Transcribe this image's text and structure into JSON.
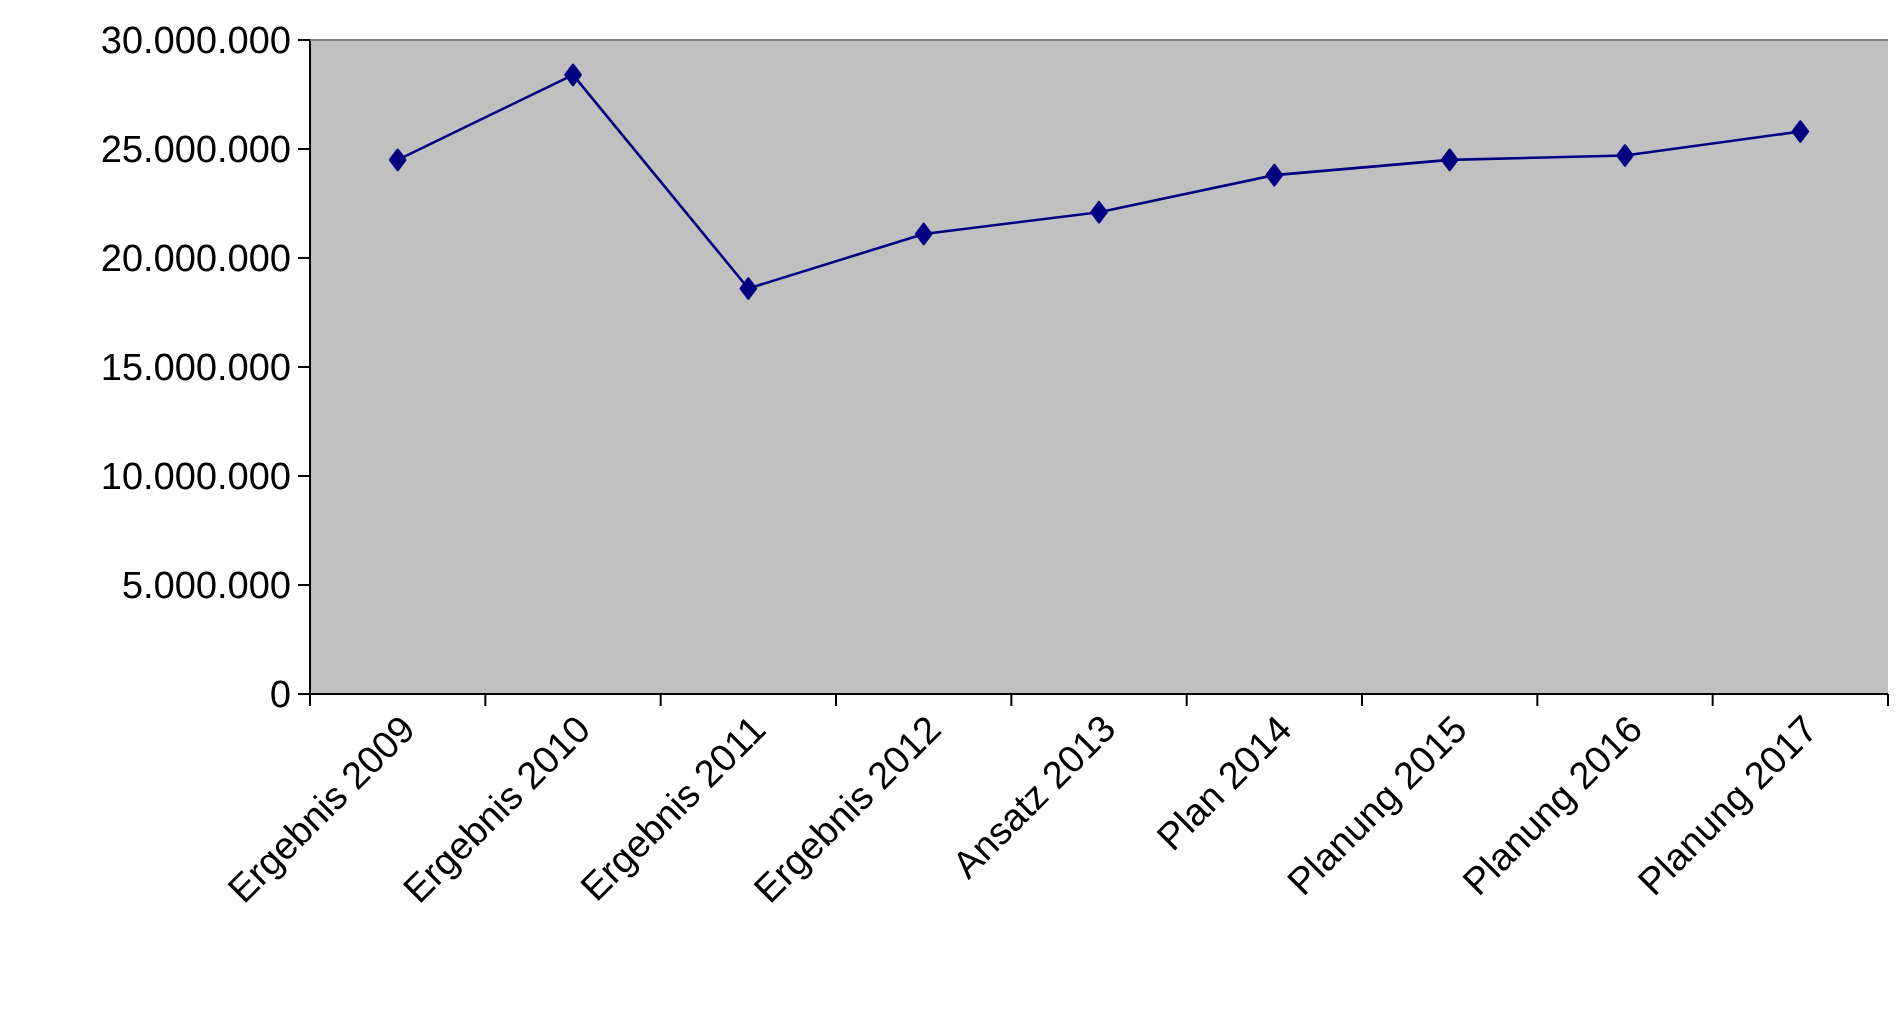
{
  "chart_data": {
    "type": "line",
    "categories": [
      "Ergebnis 2009",
      "Ergebnis 2010",
      "Ergebnis 2011",
      "Ergebnis 2012",
      "Ansatz 2013",
      "Plan 2014",
      "Planung 2015",
      "Planung 2016",
      "Planung 2017"
    ],
    "series": [
      {
        "color": "#000080",
        "values": [
          24500000,
          28400000,
          18600000,
          21100000,
          22100000,
          23800000,
          24500000,
          24700000,
          25800000
        ]
      }
    ],
    "ylim": [
      0,
      30000000
    ],
    "yticks": [
      {
        "value": 0,
        "label": "0"
      },
      {
        "value": 5000000,
        "label": "5.000.000"
      },
      {
        "value": 10000000,
        "label": "10.000.000"
      },
      {
        "value": 15000000,
        "label": "15.000.000"
      },
      {
        "value": 20000000,
        "label": "20.000.000"
      },
      {
        "value": 25000000,
        "label": "25.000.000"
      },
      {
        "value": 30000000,
        "label": "30.000.000"
      }
    ],
    "marker": "diamond",
    "line_style": "solid"
  }
}
